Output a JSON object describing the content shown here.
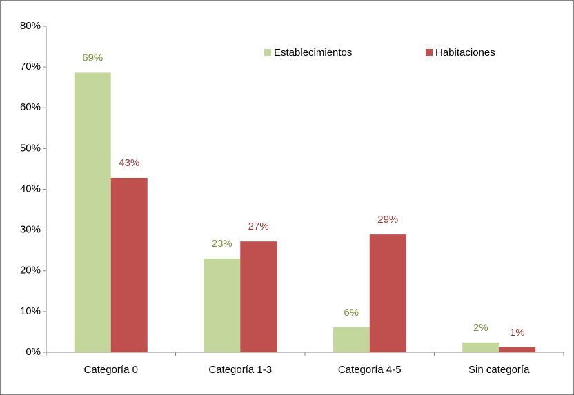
{
  "chart_data": {
    "type": "bar",
    "categories": [
      "Categoría 0",
      "Categoría 1-3",
      "Categoría 4-5",
      "Sin categoría"
    ],
    "series": [
      {
        "name": "Establecimientos",
        "color": "#c3d69b",
        "label_color": "#77933c",
        "values": [
          68.6,
          23,
          6.1,
          2.4
        ],
        "value_labels": [
          "69%",
          "23%",
          "6%",
          "2%"
        ]
      },
      {
        "name": "Habitaciones",
        "color": "#c0504d",
        "label_color": "#953735",
        "values": [
          42.8,
          27.2,
          28.9,
          1.2
        ],
        "value_labels": [
          "43%",
          "27%",
          "29%",
          "1%"
        ]
      }
    ],
    "ylim": [
      0,
      80
    ],
    "yticks": [
      {
        "value": 0,
        "label": "0%"
      },
      {
        "value": 10,
        "label": "10%"
      },
      {
        "value": 20,
        "label": "20%"
      },
      {
        "value": 30,
        "label": "30%"
      },
      {
        "value": 40,
        "label": "40%"
      },
      {
        "value": 50,
        "label": "50%"
      },
      {
        "value": 60,
        "label": "60%"
      },
      {
        "value": 70,
        "label": "70%"
      },
      {
        "value": 80,
        "label": "80%"
      }
    ],
    "grid": false
  }
}
